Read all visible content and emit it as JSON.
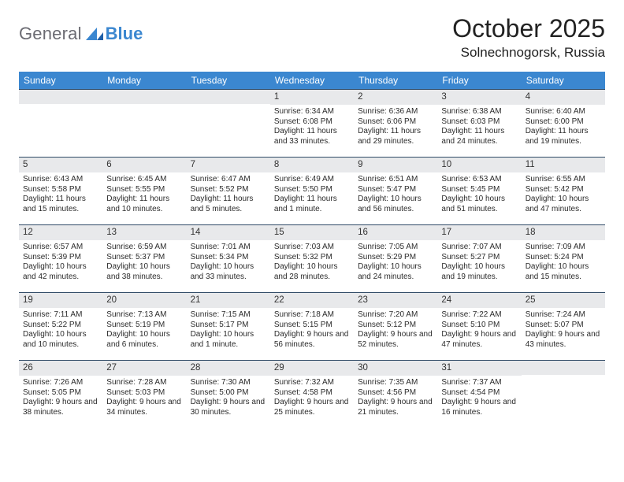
{
  "logo": {
    "word1": "General",
    "word2": "Blue"
  },
  "header": {
    "title": "October 2025",
    "location": "Solnechnogorsk, Russia"
  },
  "colors": {
    "accent": "#3b87d0",
    "bar": "#e8e9eb",
    "rule": "#2f4a66",
    "text": "#222222"
  },
  "daynames": [
    "Sunday",
    "Monday",
    "Tuesday",
    "Wednesday",
    "Thursday",
    "Friday",
    "Saturday"
  ],
  "weeks": [
    [
      {
        "blank": true
      },
      {
        "blank": true
      },
      {
        "blank": true
      },
      {
        "n": "1",
        "sr": "Sunrise: 6:34 AM",
        "ss": "Sunset: 6:08 PM",
        "dl": "Daylight: 11 hours and 33 minutes."
      },
      {
        "n": "2",
        "sr": "Sunrise: 6:36 AM",
        "ss": "Sunset: 6:06 PM",
        "dl": "Daylight: 11 hours and 29 minutes."
      },
      {
        "n": "3",
        "sr": "Sunrise: 6:38 AM",
        "ss": "Sunset: 6:03 PM",
        "dl": "Daylight: 11 hours and 24 minutes."
      },
      {
        "n": "4",
        "sr": "Sunrise: 6:40 AM",
        "ss": "Sunset: 6:00 PM",
        "dl": "Daylight: 11 hours and 19 minutes."
      }
    ],
    [
      {
        "n": "5",
        "sr": "Sunrise: 6:43 AM",
        "ss": "Sunset: 5:58 PM",
        "dl": "Daylight: 11 hours and 15 minutes."
      },
      {
        "n": "6",
        "sr": "Sunrise: 6:45 AM",
        "ss": "Sunset: 5:55 PM",
        "dl": "Daylight: 11 hours and 10 minutes."
      },
      {
        "n": "7",
        "sr": "Sunrise: 6:47 AM",
        "ss": "Sunset: 5:52 PM",
        "dl": "Daylight: 11 hours and 5 minutes."
      },
      {
        "n": "8",
        "sr": "Sunrise: 6:49 AM",
        "ss": "Sunset: 5:50 PM",
        "dl": "Daylight: 11 hours and 1 minute."
      },
      {
        "n": "9",
        "sr": "Sunrise: 6:51 AM",
        "ss": "Sunset: 5:47 PM",
        "dl": "Daylight: 10 hours and 56 minutes."
      },
      {
        "n": "10",
        "sr": "Sunrise: 6:53 AM",
        "ss": "Sunset: 5:45 PM",
        "dl": "Daylight: 10 hours and 51 minutes."
      },
      {
        "n": "11",
        "sr": "Sunrise: 6:55 AM",
        "ss": "Sunset: 5:42 PM",
        "dl": "Daylight: 10 hours and 47 minutes."
      }
    ],
    [
      {
        "n": "12",
        "sr": "Sunrise: 6:57 AM",
        "ss": "Sunset: 5:39 PM",
        "dl": "Daylight: 10 hours and 42 minutes."
      },
      {
        "n": "13",
        "sr": "Sunrise: 6:59 AM",
        "ss": "Sunset: 5:37 PM",
        "dl": "Daylight: 10 hours and 38 minutes."
      },
      {
        "n": "14",
        "sr": "Sunrise: 7:01 AM",
        "ss": "Sunset: 5:34 PM",
        "dl": "Daylight: 10 hours and 33 minutes."
      },
      {
        "n": "15",
        "sr": "Sunrise: 7:03 AM",
        "ss": "Sunset: 5:32 PM",
        "dl": "Daylight: 10 hours and 28 minutes."
      },
      {
        "n": "16",
        "sr": "Sunrise: 7:05 AM",
        "ss": "Sunset: 5:29 PM",
        "dl": "Daylight: 10 hours and 24 minutes."
      },
      {
        "n": "17",
        "sr": "Sunrise: 7:07 AM",
        "ss": "Sunset: 5:27 PM",
        "dl": "Daylight: 10 hours and 19 minutes."
      },
      {
        "n": "18",
        "sr": "Sunrise: 7:09 AM",
        "ss": "Sunset: 5:24 PM",
        "dl": "Daylight: 10 hours and 15 minutes."
      }
    ],
    [
      {
        "n": "19",
        "sr": "Sunrise: 7:11 AM",
        "ss": "Sunset: 5:22 PM",
        "dl": "Daylight: 10 hours and 10 minutes."
      },
      {
        "n": "20",
        "sr": "Sunrise: 7:13 AM",
        "ss": "Sunset: 5:19 PM",
        "dl": "Daylight: 10 hours and 6 minutes."
      },
      {
        "n": "21",
        "sr": "Sunrise: 7:15 AM",
        "ss": "Sunset: 5:17 PM",
        "dl": "Daylight: 10 hours and 1 minute."
      },
      {
        "n": "22",
        "sr": "Sunrise: 7:18 AM",
        "ss": "Sunset: 5:15 PM",
        "dl": "Daylight: 9 hours and 56 minutes."
      },
      {
        "n": "23",
        "sr": "Sunrise: 7:20 AM",
        "ss": "Sunset: 5:12 PM",
        "dl": "Daylight: 9 hours and 52 minutes."
      },
      {
        "n": "24",
        "sr": "Sunrise: 7:22 AM",
        "ss": "Sunset: 5:10 PM",
        "dl": "Daylight: 9 hours and 47 minutes."
      },
      {
        "n": "25",
        "sr": "Sunrise: 7:24 AM",
        "ss": "Sunset: 5:07 PM",
        "dl": "Daylight: 9 hours and 43 minutes."
      }
    ],
    [
      {
        "n": "26",
        "sr": "Sunrise: 7:26 AM",
        "ss": "Sunset: 5:05 PM",
        "dl": "Daylight: 9 hours and 38 minutes."
      },
      {
        "n": "27",
        "sr": "Sunrise: 7:28 AM",
        "ss": "Sunset: 5:03 PM",
        "dl": "Daylight: 9 hours and 34 minutes."
      },
      {
        "n": "28",
        "sr": "Sunrise: 7:30 AM",
        "ss": "Sunset: 5:00 PM",
        "dl": "Daylight: 9 hours and 30 minutes."
      },
      {
        "n": "29",
        "sr": "Sunrise: 7:32 AM",
        "ss": "Sunset: 4:58 PM",
        "dl": "Daylight: 9 hours and 25 minutes."
      },
      {
        "n": "30",
        "sr": "Sunrise: 7:35 AM",
        "ss": "Sunset: 4:56 PM",
        "dl": "Daylight: 9 hours and 21 minutes."
      },
      {
        "n": "31",
        "sr": "Sunrise: 7:37 AM",
        "ss": "Sunset: 4:54 PM",
        "dl": "Daylight: 9 hours and 16 minutes."
      },
      {
        "blank": true
      }
    ]
  ]
}
